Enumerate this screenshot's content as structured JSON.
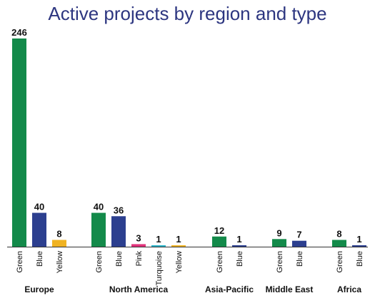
{
  "chart_data": {
    "type": "bar",
    "title": "Active projects by region and type",
    "xlabel": "",
    "ylabel": "",
    "ylim": [
      0,
      246
    ],
    "grid": false,
    "legend": "none",
    "colors": {
      "Green": "#138a4a",
      "Blue": "#2c3f8f",
      "Yellow": "#f0b323",
      "Pink": "#e0327a",
      "Turquoise": "#2ab3c9"
    },
    "groups": [
      {
        "region": "Europe",
        "bars": [
          {
            "type": "Green",
            "value": 246
          },
          {
            "type": "Blue",
            "value": 40
          },
          {
            "type": "Yellow",
            "value": 8
          }
        ]
      },
      {
        "region": "North America",
        "bars": [
          {
            "type": "Green",
            "value": 40
          },
          {
            "type": "Blue",
            "value": 36
          },
          {
            "type": "Pink",
            "value": 3
          },
          {
            "type": "Turquoise",
            "value": 1
          },
          {
            "type": "Yellow",
            "value": 1
          }
        ]
      },
      {
        "region": "Asia-Pacific",
        "bars": [
          {
            "type": "Green",
            "value": 12
          },
          {
            "type": "Blue",
            "value": 1
          }
        ]
      },
      {
        "region": "Middle East",
        "bars": [
          {
            "type": "Green",
            "value": 9
          },
          {
            "type": "Blue",
            "value": 7
          }
        ]
      },
      {
        "region": "Africa",
        "bars": [
          {
            "type": "Green",
            "value": 8
          },
          {
            "type": "Blue",
            "value": 1
          }
        ]
      }
    ]
  }
}
